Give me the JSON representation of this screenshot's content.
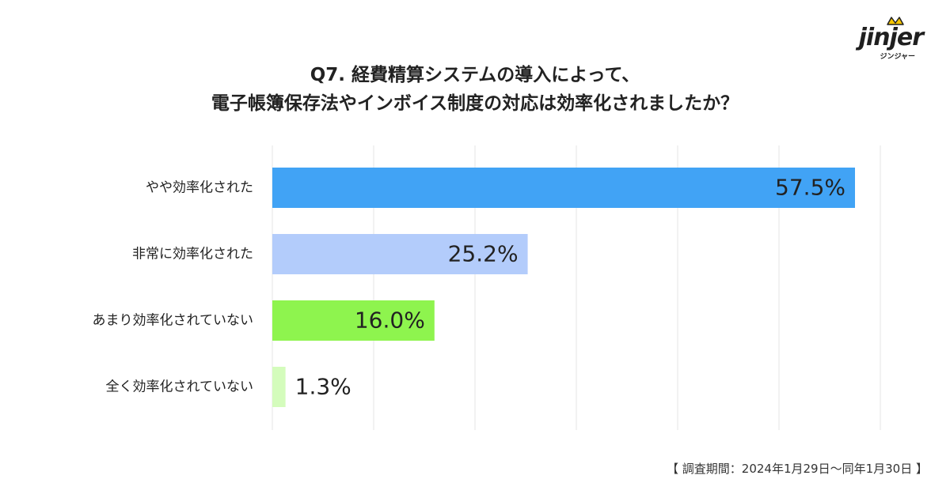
{
  "logo": {
    "word": "jinjer",
    "sub": "ジンジャー"
  },
  "title": {
    "line1": "Q7. 経費精算システムの導入によって、",
    "line2": "電子帳簿保存法やインボイス制度の対応は効率化されましたか？"
  },
  "source": "【 調査期間：2024年1月29日〜同年1月30日 】",
  "chart_data": {
    "type": "bar",
    "orientation": "horizontal",
    "categories": [
      "やや効率化された",
      "非常に効率化された",
      "あまり効率化されていない",
      "全く効率化されていない"
    ],
    "values": [
      57.5,
      25.2,
      16.0,
      1.3
    ],
    "value_labels": [
      "57.5%",
      "25.2%",
      "16.0%",
      "1.3%"
    ],
    "colors": [
      "#41a3f5",
      "#b3ccfb",
      "#8ef44e",
      "#d4fcbc"
    ],
    "xlim": [
      0,
      60
    ],
    "grid": true,
    "gridline_count": 7
  }
}
